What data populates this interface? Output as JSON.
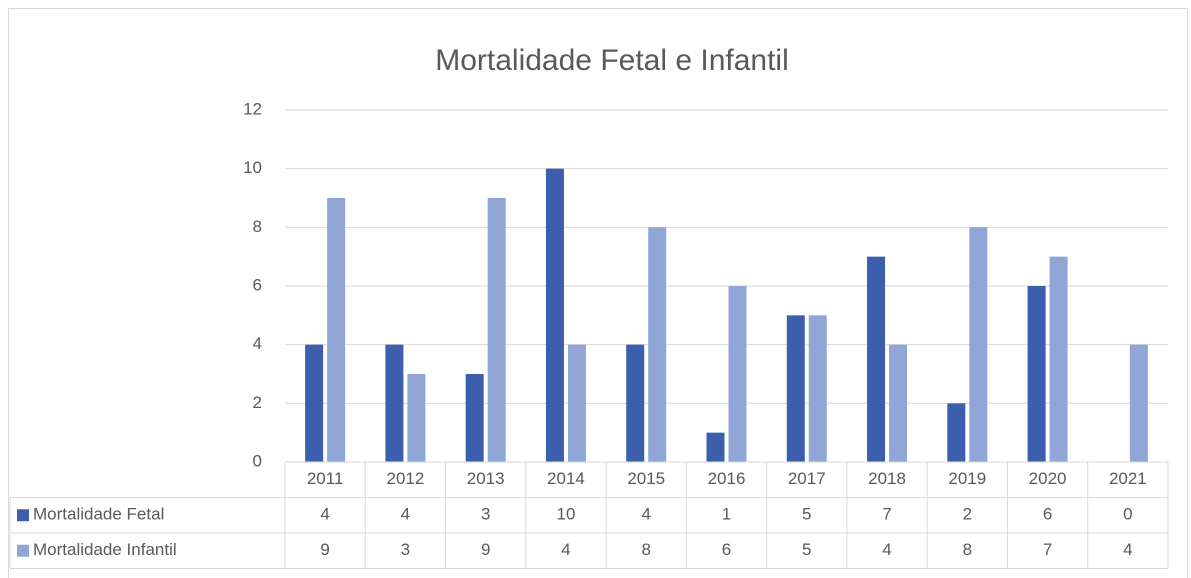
{
  "chart_data": {
    "type": "bar",
    "title": "Mortalidade Fetal e Infantil",
    "categories": [
      "2011",
      "2012",
      "2013",
      "2014",
      "2015",
      "2016",
      "2017",
      "2018",
      "2019",
      "2020",
      "2021"
    ],
    "series": [
      {
        "name": "Mortalidade Fetal",
        "color": "#3b5fad",
        "values": [
          4,
          4,
          3,
          10,
          4,
          1,
          5,
          7,
          2,
          6,
          0
        ]
      },
      {
        "name": "Mortalidade Infantil",
        "color": "#8fa6d6",
        "values": [
          9,
          3,
          9,
          4,
          8,
          6,
          5,
          4,
          8,
          7,
          4
        ]
      }
    ],
    "ylim": [
      0,
      12
    ],
    "yticks": [
      0,
      2,
      4,
      6,
      8,
      10,
      12
    ],
    "grid": true,
    "data_table": true
  }
}
